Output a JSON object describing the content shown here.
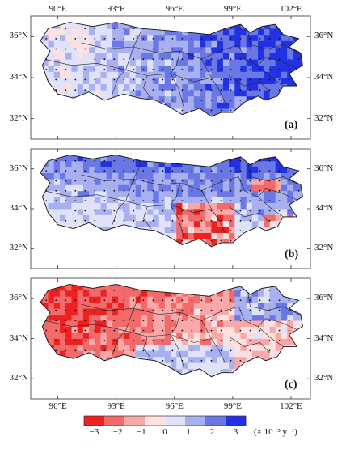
{
  "chart_data": {
    "type": "heatmap",
    "map_extent": {
      "lon": [
        88.6,
        103.0
      ],
      "lat": [
        31.0,
        37.0
      ]
    },
    "x_ticks": [
      "90°E",
      "93°E",
      "96°E",
      "99°E",
      "102°E"
    ],
    "x_tick_values": [
      90,
      93,
      96,
      99,
      102
    ],
    "y_ticks": [
      "36°N",
      "34°N",
      "32°N"
    ],
    "y_tick_values": [
      36,
      34,
      32
    ],
    "panels": [
      {
        "label": "(a)",
        "dominant_trend": "positive"
      },
      {
        "label": "(b)",
        "dominant_trend": "mixed"
      },
      {
        "label": "(c)",
        "dominant_trend": "negative"
      }
    ],
    "colorbar": {
      "tick_labels": [
        "−3",
        "−2",
        "−1",
        "0",
        "1",
        "2",
        "3"
      ],
      "tick_values": [
        -3,
        -2,
        -1,
        0,
        1,
        2,
        3
      ],
      "unit_label": "(× 10⁻³ y⁻¹)",
      "colors": [
        "#ee2020",
        "#f36a6a",
        "#f8a8a8",
        "#fde0e0",
        "#dfe2f8",
        "#a8b0ef",
        "#6a78e6",
        "#2232e2"
      ]
    }
  }
}
